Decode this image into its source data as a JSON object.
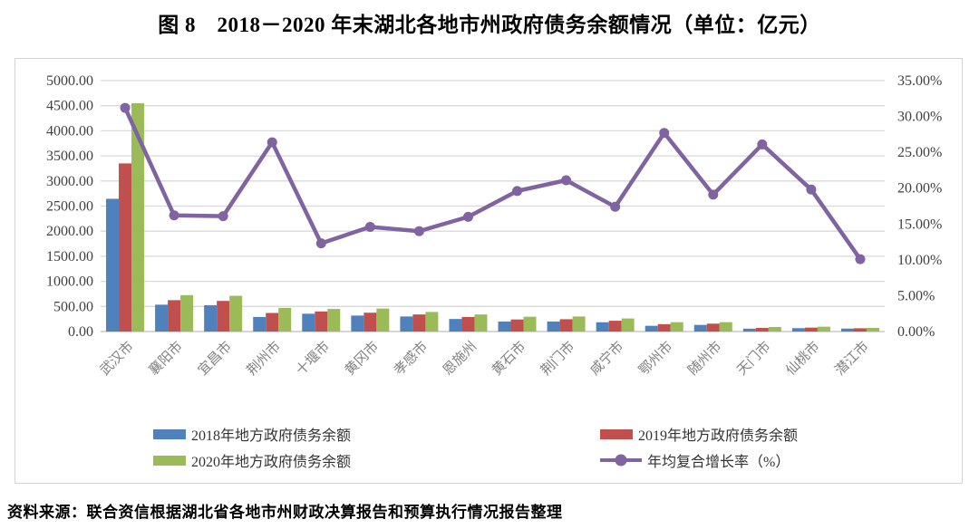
{
  "title": "图 8　2018－2020 年末湖北各地市州政府债务余额情况（单位：亿元）",
  "source_note": "资料来源：联合资信根据湖北省各地市州财政决算报告和预算执行情况报告整理",
  "colors": {
    "bar_2018": "#4F81BD",
    "bar_2019": "#C0504D",
    "bar_2020": "#9BBB59",
    "line_cagr": "#8064A2",
    "gridline": "#D9D9D9",
    "axis_line": "#BFBFBF",
    "tick_text": "#404040",
    "category_text": "#808080",
    "legend_text": "#333333",
    "box_border": "#D3D3D3"
  },
  "chart_data": {
    "type": "bar",
    "subtype": "grouped bars with secondary-axis line (combo chart)",
    "title": "图 8　2018－2020 年末湖北各地市州政府债务余额情况（单位：亿元）",
    "categories": [
      "武汉市",
      "襄阳市",
      "宜昌市",
      "荆州市",
      "十堰市",
      "黄冈市",
      "孝感市",
      "恩施州",
      "黄石市",
      "荆门市",
      "咸宁市",
      "鄂州市",
      "随州市",
      "天门市",
      "仙桃市",
      "潜江市"
    ],
    "series": [
      {
        "name": "2018年地方政府债务余额",
        "type": "bar",
        "axis": "left",
        "color": "#4F81BD",
        "values": [
          2645,
          535,
          525,
          290,
          355,
          318,
          300,
          250,
          200,
          200,
          185,
          114,
          132,
          57,
          67,
          59
        ]
      },
      {
        "name": "2019年地方政府债务余额",
        "type": "bar",
        "axis": "left",
        "color": "#C0504D",
        "values": [
          3350,
          625,
          610,
          370,
          400,
          375,
          340,
          290,
          240,
          245,
          215,
          146,
          157,
          72,
          78,
          65
        ]
      },
      {
        "name": "2020年地方政府债务余额",
        "type": "bar",
        "axis": "left",
        "color": "#9BBB59",
        "values": [
          4550,
          725,
          712,
          470,
          450,
          458,
          390,
          340,
          295,
          300,
          260,
          186,
          187,
          90,
          96,
          72
        ]
      },
      {
        "name": "年均复合增长率（%）",
        "type": "line",
        "axis": "right",
        "color": "#8064A2",
        "marker": "circle",
        "values": [
          31.2,
          16.2,
          16.1,
          26.4,
          12.3,
          14.6,
          14.0,
          16.0,
          19.6,
          21.1,
          17.4,
          27.7,
          19.1,
          26.1,
          19.8,
          10.1
        ]
      }
    ],
    "left_axis": {
      "min": 0,
      "max": 5000,
      "step": 500,
      "unit": "亿元",
      "tick_labels": [
        "0.00",
        "500.00",
        "1000.00",
        "1500.00",
        "2000.00",
        "2500.00",
        "3000.00",
        "3500.00",
        "4000.00",
        "4500.00",
        "5000.00"
      ]
    },
    "right_axis": {
      "min": 0,
      "max": 35,
      "step": 5,
      "unit": "%",
      "tick_labels": [
        "0.00%",
        "5.00%",
        "10.00%",
        "15.00%",
        "20.00%",
        "25.00%",
        "30.00%",
        "35.00%"
      ]
    },
    "grid": "horizontal",
    "legend_position": "bottom",
    "category_label_rotation_deg": 45
  }
}
